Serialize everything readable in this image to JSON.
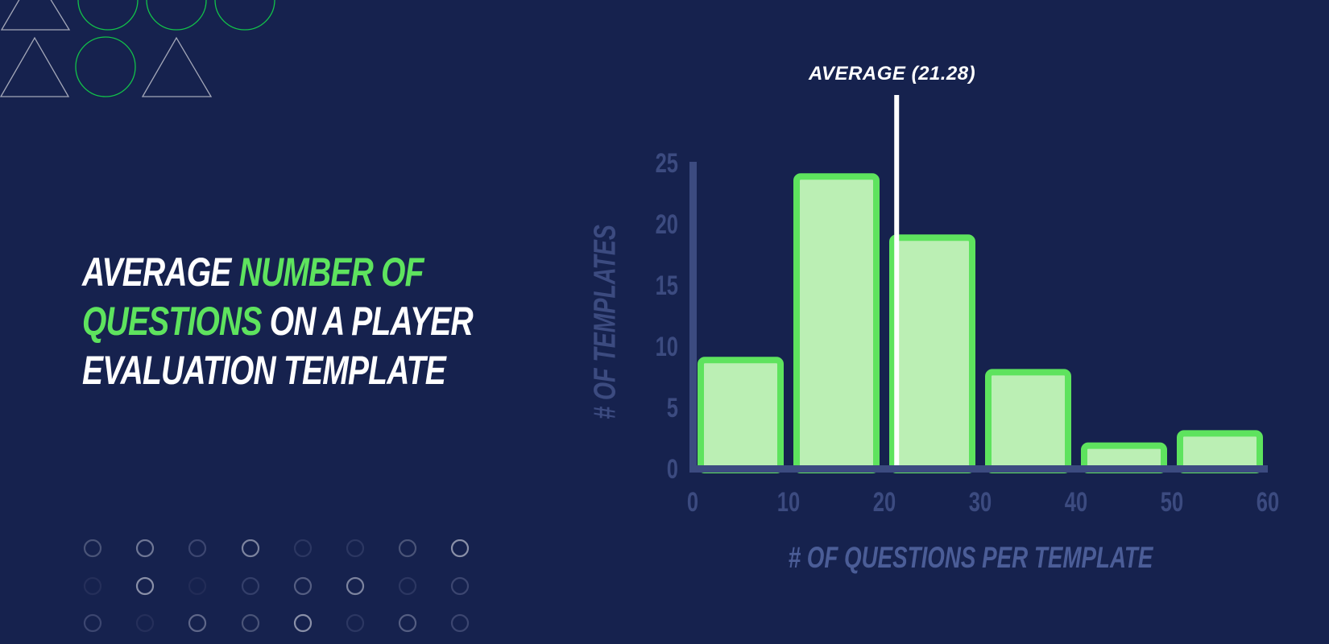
{
  "headline": {
    "part1": "AVERAGE ",
    "part2_highlight": "NUMBER OF",
    "part3_highlight": "QUESTIONS",
    "part4": " ON A PLAYER",
    "part5": "EVALUATION TEMPLATE"
  },
  "colors": {
    "background": "#16224e",
    "accent_green": "#5ee35e",
    "bar_fill": "#bbefb4",
    "axis": "#3c4b80",
    "text_white": "#ffffff"
  },
  "decorations": {
    "top_shapes": [
      "triangle-icon",
      "circle-icon",
      "circle-icon",
      "circle-icon",
      "triangle-icon",
      "circle-icon",
      "triangle-icon"
    ],
    "dot_grid_rows": 3,
    "dot_grid_cols": 8
  },
  "chart_data": {
    "type": "bar",
    "title": "Average number of questions on a player evaluation template",
    "categories": [
      "0-10",
      "10-20",
      "20-30",
      "30-40",
      "40-50",
      "50-60"
    ],
    "bin_edges": [
      0,
      10,
      20,
      30,
      40,
      50,
      60
    ],
    "values": [
      9,
      24,
      19,
      8,
      2,
      3
    ],
    "xlabel": "# OF QUESTIONS PER TEMPLATE",
    "ylabel": "# OF TEMPLATES",
    "xticks": [
      "0",
      "10",
      "20",
      "30",
      "40",
      "50",
      "60"
    ],
    "yticks": [
      "0",
      "5",
      "10",
      "15",
      "20",
      "25"
    ],
    "xlim": [
      0,
      60
    ],
    "ylim": [
      0,
      25
    ],
    "grid": false,
    "annotations": [
      {
        "type": "vline",
        "x": 21.28,
        "label": "AVERAGE (21.28)"
      }
    ]
  }
}
